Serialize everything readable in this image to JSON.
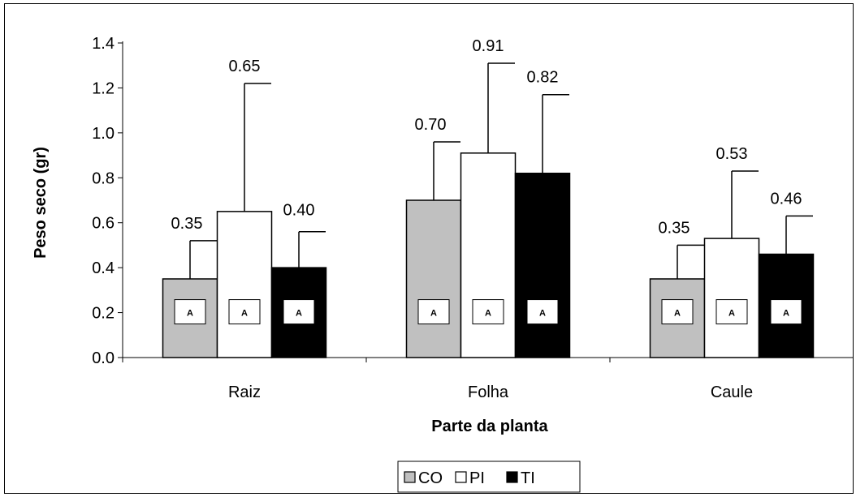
{
  "chart_data": {
    "type": "bar",
    "categories": [
      "Raiz",
      "Folha",
      "Caule"
    ],
    "series": [
      {
        "name": "CO",
        "values": [
          0.35,
          0.7,
          0.35
        ],
        "error_upper": [
          0.52,
          0.96,
          0.5
        ],
        "significance": [
          "A",
          "A",
          "A"
        ],
        "color": "#c0c0c0"
      },
      {
        "name": "PI",
        "values": [
          0.65,
          0.91,
          0.53
        ],
        "error_upper": [
          1.22,
          1.31,
          0.83
        ],
        "significance": [
          "A",
          "A",
          "A"
        ],
        "color": "#ffffff"
      },
      {
        "name": "TI",
        "values": [
          0.4,
          0.82,
          0.46
        ],
        "error_upper": [
          0.56,
          1.17,
          0.63
        ],
        "significance": [
          "A",
          "A",
          "A"
        ],
        "color": "#000000"
      }
    ],
    "value_labels": [
      [
        "0.35",
        "0.70",
        "0.35"
      ],
      [
        "0.65",
        "0.91",
        "0.53"
      ],
      [
        "0.40",
        "0.82",
        "0.46"
      ]
    ],
    "xlabel": "Parte da planta",
    "ylabel": "Peso seco (gr)",
    "ylim": [
      0,
      1.4
    ],
    "yticks": [
      "0.0",
      "0.2",
      "0.4",
      "0.6",
      "0.8",
      "1.0",
      "1.2",
      "1.4"
    ],
    "grid": false,
    "legend_position": "bottom"
  }
}
